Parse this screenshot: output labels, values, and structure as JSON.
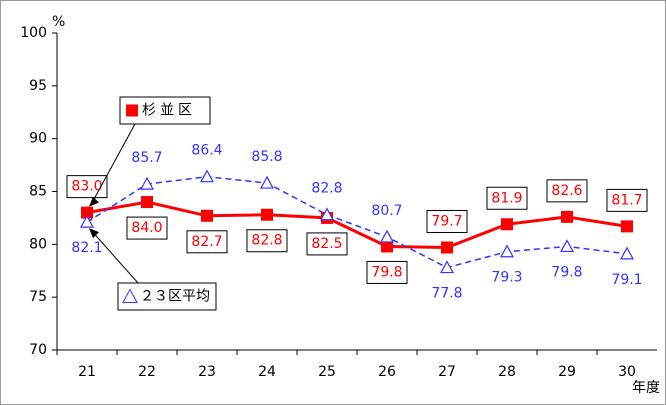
{
  "chart_data": {
    "type": "line",
    "y_unit": "%",
    "x_unit": "年度",
    "categories": [
      "21",
      "22",
      "23",
      "24",
      "25",
      "26",
      "27",
      "28",
      "29",
      "30"
    ],
    "series": [
      {
        "name": "杉並区",
        "color": "#ff0000",
        "marker": "square",
        "dashed": false,
        "values": [
          83.0,
          84.0,
          82.7,
          82.8,
          82.5,
          79.8,
          79.7,
          81.9,
          82.6,
          81.7
        ],
        "value_labels": [
          "83.0",
          "84.0",
          "82.7",
          "82.8",
          "82.5",
          "79.8",
          "79.7",
          "81.9",
          "82.6",
          "81.7"
        ]
      },
      {
        "name": "２３区平均",
        "color": "#3333ff",
        "marker": "triangle",
        "dashed": true,
        "values": [
          82.1,
          85.7,
          86.4,
          85.8,
          82.8,
          80.7,
          77.8,
          79.3,
          79.8,
          79.1
        ],
        "value_labels": [
          "82.1",
          "85.7",
          "86.4",
          "85.8",
          "82.8",
          "80.7",
          "77.8",
          "79.3",
          "79.8",
          "79.1"
        ]
      }
    ],
    "ylim": [
      70,
      100
    ],
    "yticks": [
      70,
      75,
      80,
      85,
      90,
      95,
      100
    ],
    "grid": false
  }
}
